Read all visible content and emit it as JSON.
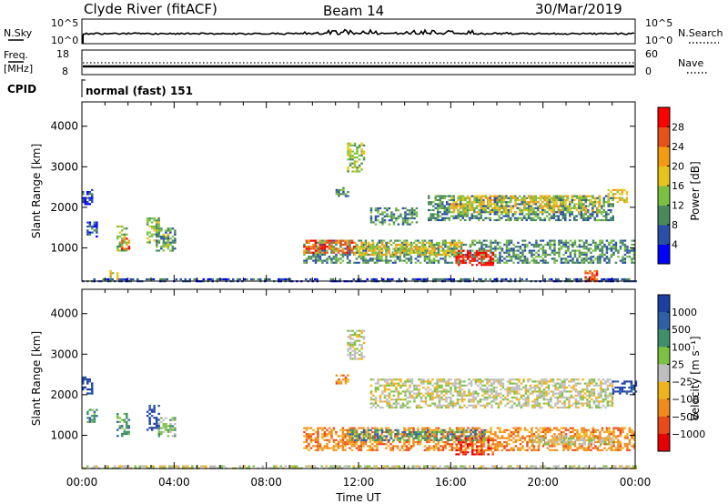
{
  "header": {
    "station": "Clyde River (fitACF)",
    "beam": "Beam 14",
    "date": "30/Mar/2019"
  },
  "nsky_panel": {
    "left_label": "N.Sky",
    "left_ticks": [
      "10^5",
      "10^0"
    ],
    "right_label": "N.Search",
    "right_ticks": [
      "10^5",
      "10^0"
    ]
  },
  "freq_panel": {
    "left_label_top": "Freq.",
    "left_label_bottom": "[MHz]",
    "left_ticks": [
      "18",
      "8"
    ],
    "right_label": "Nave",
    "right_ticks": [
      "60",
      "0"
    ]
  },
  "cpid_panel": {
    "label": "CPID",
    "mode": "normal (fast) 151"
  },
  "chart_data": [
    {
      "type": "heatmap",
      "name": "power",
      "xlabel": "",
      "ylabel": "Slant Range [km]",
      "xlim": [
        0,
        24
      ],
      "ylim": [
        180,
        4600
      ],
      "yticks": [
        "1000",
        "2000",
        "3000",
        "4000"
      ],
      "colorbar": {
        "label": "Power [dB]",
        "ticks": [
          "4",
          "8",
          "12",
          "16",
          "20",
          "24",
          "28"
        ],
        "colors": [
          "#0000ff",
          "#2a4fa8",
          "#4a8a5a",
          "#7bc043",
          "#e8c41a",
          "#f39c12",
          "#e8501a",
          "#ff0000"
        ]
      },
      "regions": [
        {
          "t0": 0.0,
          "t1": 24.0,
          "r0": 190,
          "r1": 250,
          "level": 1
        },
        {
          "t0": 0.0,
          "t1": 0.4,
          "r0": 2100,
          "r1": 2450,
          "level": 1
        },
        {
          "t0": 0.2,
          "t1": 0.6,
          "r0": 1300,
          "r1": 1650,
          "level": 1
        },
        {
          "t0": 1.2,
          "t1": 1.5,
          "r0": 250,
          "r1": 450,
          "level": 4
        },
        {
          "t0": 1.5,
          "t1": 1.9,
          "r0": 950,
          "r1": 1550,
          "level": 3
        },
        {
          "t0": 1.7,
          "t1": 2.0,
          "r0": 1000,
          "r1": 1250,
          "level": 6
        },
        {
          "t0": 2.8,
          "t1": 3.3,
          "r0": 1150,
          "r1": 1750,
          "level": 3
        },
        {
          "t0": 3.2,
          "t1": 4.0,
          "r0": 950,
          "r1": 1500,
          "level": 2
        },
        {
          "t0": 3.5,
          "t1": 3.9,
          "r0": 1050,
          "r1": 1350,
          "level": 3
        },
        {
          "t0": 9.6,
          "t1": 24.0,
          "r0": 650,
          "r1": 1200,
          "level": 2
        },
        {
          "t0": 9.6,
          "t1": 11.8,
          "r0": 900,
          "r1": 1200,
          "level": 6
        },
        {
          "t0": 11.8,
          "t1": 16.5,
          "r0": 850,
          "r1": 1150,
          "level": 4
        },
        {
          "t0": 16.2,
          "t1": 17.8,
          "r0": 600,
          "r1": 950,
          "level": 7
        },
        {
          "t0": 12.5,
          "t1": 14.5,
          "r0": 1600,
          "r1": 2000,
          "level": 2
        },
        {
          "t0": 15.0,
          "t1": 23.0,
          "r0": 1700,
          "r1": 2300,
          "level": 2
        },
        {
          "t0": 16.0,
          "t1": 22.5,
          "r0": 1900,
          "r1": 2300,
          "level": 4
        },
        {
          "t0": 22.8,
          "t1": 23.6,
          "r0": 2150,
          "r1": 2450,
          "level": 4
        },
        {
          "t0": 11.5,
          "t1": 12.2,
          "r0": 2900,
          "r1": 3600,
          "level": 3
        },
        {
          "t0": 11.0,
          "t1": 11.5,
          "r0": 2300,
          "r1": 2500,
          "level": 2
        },
        {
          "t0": 21.8,
          "t1": 22.3,
          "r0": 180,
          "r1": 450,
          "level": 6
        }
      ]
    },
    {
      "type": "heatmap",
      "name": "velocity",
      "xlabel": "Time UT",
      "ylabel": "Slant Range [km]",
      "xlim": [
        0,
        24
      ],
      "ylim": [
        180,
        4600
      ],
      "xticks": [
        "00:00",
        "04:00",
        "08:00",
        "12:00",
        "16:00",
        "20:00",
        "00:00"
      ],
      "yticks": [
        "1000",
        "2000",
        "3000",
        "4000"
      ],
      "colorbar": {
        "label": "Velocity [m s⁻¹]",
        "ticks": [
          "1000",
          "500",
          "100",
          "25",
          "−25",
          "−100",
          "−500",
          "−1000"
        ],
        "colors": [
          "#1d3fa3",
          "#2f5fa5",
          "#3e8f6a",
          "#7dc043",
          "#bebebe",
          "#f0b21d",
          "#f08a1a",
          "#ea4a1a",
          "#e60000"
        ]
      },
      "regions": [
        {
          "t0": 0.0,
          "t1": 24.0,
          "r0": 190,
          "r1": 260,
          "level": 4
        },
        {
          "t0": 0.0,
          "t1": 0.4,
          "r0": 2050,
          "r1": 2450,
          "level": 0
        },
        {
          "t0": 0.2,
          "t1": 0.6,
          "r0": 1350,
          "r1": 1650,
          "level": 2
        },
        {
          "t0": 1.5,
          "t1": 2.0,
          "r0": 1000,
          "r1": 1550,
          "level": 2
        },
        {
          "t0": 2.8,
          "t1": 3.3,
          "r0": 1150,
          "r1": 1750,
          "level": 0
        },
        {
          "t0": 3.3,
          "t1": 4.0,
          "r0": 1000,
          "r1": 1450,
          "level": 3
        },
        {
          "t0": 9.6,
          "t1": 24.0,
          "r0": 650,
          "r1": 1200,
          "level": 6
        },
        {
          "t0": 11.5,
          "t1": 17.5,
          "r0": 900,
          "r1": 1150,
          "level": 2
        },
        {
          "t0": 16.2,
          "t1": 17.8,
          "r0": 550,
          "r1": 950,
          "level": 7
        },
        {
          "t0": 19.5,
          "t1": 23.0,
          "r0": 800,
          "r1": 1000,
          "level": 4
        },
        {
          "t0": 12.5,
          "t1": 23.0,
          "r0": 1700,
          "r1": 2400,
          "level": 4
        },
        {
          "t0": 23.0,
          "t1": 24.0,
          "r0": 2050,
          "r1": 2350,
          "level": 0
        },
        {
          "t0": 11.5,
          "t1": 12.2,
          "r0": 2900,
          "r1": 3600,
          "level": 4
        },
        {
          "t0": 11.0,
          "t1": 11.5,
          "r0": 2300,
          "r1": 2500,
          "level": 6
        }
      ]
    }
  ]
}
